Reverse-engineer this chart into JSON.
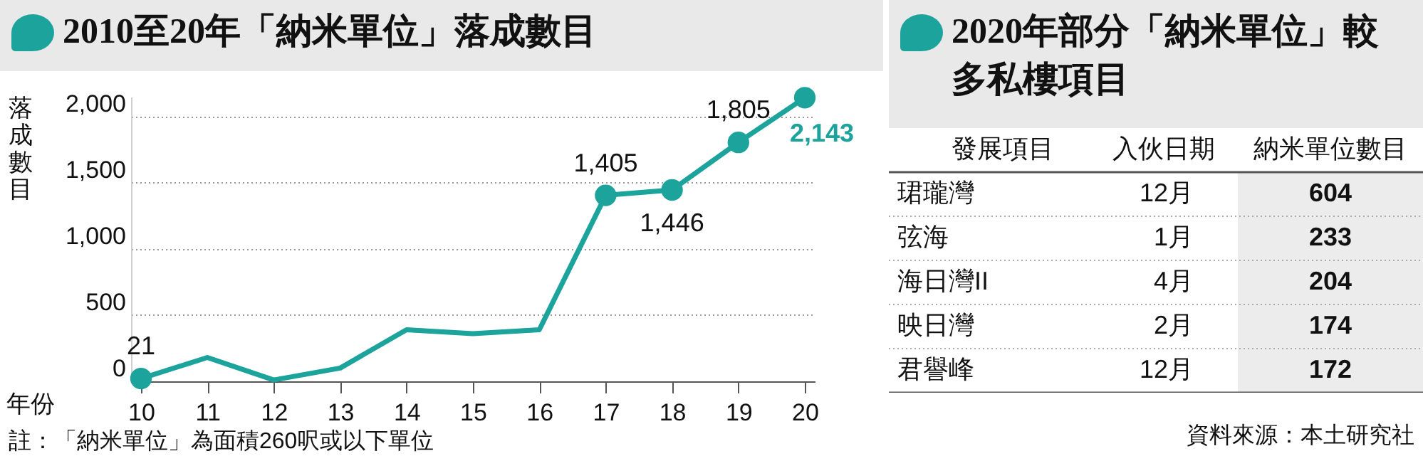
{
  "chart_data": [
    {
      "type": "line",
      "title": "2010至20年「納米單位」落成數目",
      "xlabel": "年份",
      "ylabel": "落成數目",
      "categories": [
        "10",
        "11",
        "12",
        "13",
        "14",
        "15",
        "16",
        "17",
        "18",
        "19",
        "20"
      ],
      "series": [
        {
          "color": "#1ba39c",
          "values": [
            21,
            180,
            10,
            100,
            390,
            360,
            390,
            1405,
            1446,
            1805,
            2143
          ],
          "value_labels": [
            "21",
            null,
            null,
            null,
            null,
            null,
            null,
            "1,405",
            "1,446",
            "1,805",
            "2,143"
          ]
        }
      ],
      "ylim": [
        0,
        2150
      ],
      "yticks": [
        0,
        500,
        {
          "value": 1000,
          "label": "1,000"
        },
        {
          "value": 1500,
          "label": "1,500"
        },
        {
          "value": 2000,
          "label": "2,000"
        }
      ],
      "grid": "y",
      "line_style": "solid",
      "annotations": [
        "註：「納米單位」為面積260呎或以下單位"
      ]
    },
    {
      "type": "other",
      "title": "2020年部分「納米單位」較多私樓項目",
      "categories": [
        "珺瓏灣",
        "弦海",
        "海日灣II",
        "映日灣",
        "君譽峰"
      ],
      "cell_labels": [
        [
          "12月"
        ],
        [
          "1月"
        ],
        [
          "4月"
        ],
        [
          "2月"
        ],
        [
          "12月"
        ]
      ],
      "values": [
        604,
        233,
        204,
        174,
        172
      ],
      "data_labels": true,
      "annotations": [
        "發展項目",
        "入伙日期",
        "納米單位數目",
        "資料來源：本土研究社"
      ]
    }
  ]
}
